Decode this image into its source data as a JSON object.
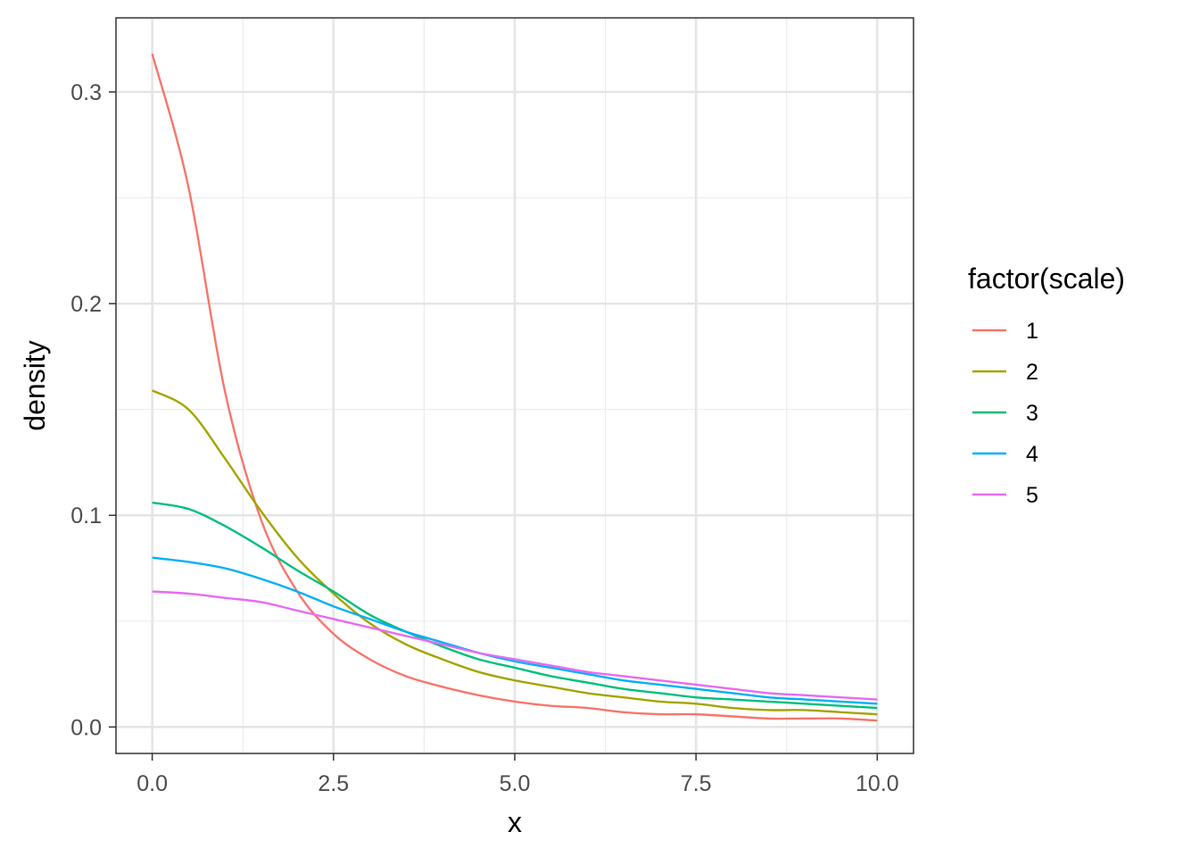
{
  "chart_data": {
    "type": "line",
    "title": "",
    "xlabel": "x",
    "ylabel": "density",
    "xlim": [
      -0.5,
      10.5
    ],
    "ylim": [
      -0.0125,
      0.335
    ],
    "x_ticks": [
      0,
      2.5,
      5,
      7.5,
      10
    ],
    "x_tick_labels": [
      "0.0",
      "2.5",
      "5.0",
      "7.5",
      "10.0"
    ],
    "y_ticks": [
      0,
      0.1,
      0.2,
      0.3
    ],
    "y_tick_labels": [
      "0.0",
      "0.1",
      "0.2",
      "0.3"
    ],
    "grid": true,
    "legend": {
      "title": "factor(scale)",
      "position": "right"
    },
    "x": [
      0,
      0.5,
      1,
      1.5,
      2,
      2.5,
      3,
      3.5,
      4,
      4.5,
      5,
      5.5,
      6,
      6.5,
      7,
      7.5,
      8,
      8.5,
      9,
      9.5,
      10
    ],
    "series": [
      {
        "name": "1",
        "color": "#F8766D",
        "values": [
          0.318,
          0.255,
          0.159,
          0.098,
          0.064,
          0.044,
          0.032,
          0.024,
          0.019,
          0.015,
          0.012,
          0.01,
          0.009,
          0.007,
          0.006,
          0.006,
          0.005,
          0.004,
          0.004,
          0.004,
          0.003
        ]
      },
      {
        "name": "2",
        "color": "#A3A500",
        "values": [
          0.159,
          0.15,
          0.127,
          0.102,
          0.08,
          0.063,
          0.049,
          0.039,
          0.032,
          0.026,
          0.022,
          0.019,
          0.016,
          0.014,
          0.012,
          0.011,
          0.009,
          0.008,
          0.008,
          0.007,
          0.006
        ]
      },
      {
        "name": "3",
        "color": "#00BF7D",
        "values": [
          0.106,
          0.103,
          0.095,
          0.085,
          0.074,
          0.064,
          0.053,
          0.045,
          0.038,
          0.032,
          0.028,
          0.024,
          0.021,
          0.018,
          0.016,
          0.014,
          0.013,
          0.012,
          0.011,
          0.01,
          0.009
        ]
      },
      {
        "name": "4",
        "color": "#00B0F6",
        "values": [
          0.08,
          0.078,
          0.075,
          0.07,
          0.064,
          0.057,
          0.051,
          0.045,
          0.04,
          0.035,
          0.031,
          0.028,
          0.025,
          0.022,
          0.02,
          0.018,
          0.016,
          0.014,
          0.013,
          0.012,
          0.011
        ]
      },
      {
        "name": "5",
        "color": "#E76BF3",
        "values": [
          0.064,
          0.063,
          0.061,
          0.059,
          0.055,
          0.051,
          0.047,
          0.043,
          0.039,
          0.035,
          0.032,
          0.029,
          0.026,
          0.024,
          0.022,
          0.02,
          0.018,
          0.016,
          0.015,
          0.014,
          0.013
        ]
      }
    ]
  }
}
